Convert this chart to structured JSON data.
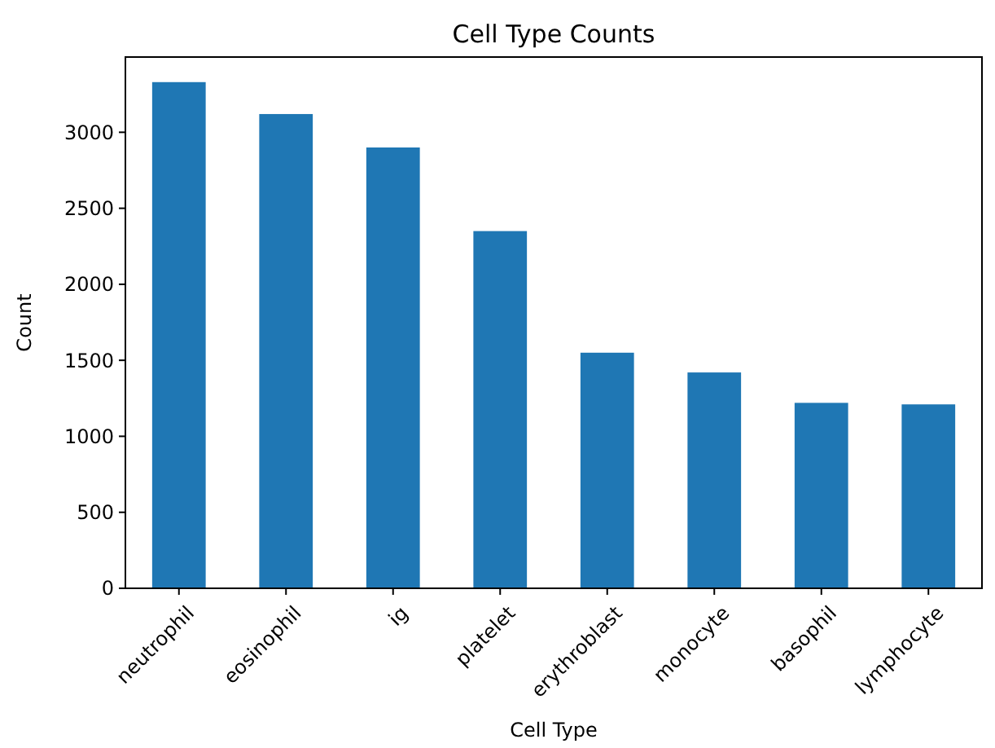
{
  "chart_data": {
    "type": "bar",
    "title": "Cell Type Counts",
    "xlabel": "Cell Type",
    "ylabel": "Count",
    "categories": [
      "neutrophil",
      "eosinophil",
      "ig",
      "platelet",
      "erythroblast",
      "monocyte",
      "basophil",
      "lymphocyte"
    ],
    "values": [
      3330,
      3120,
      2900,
      2350,
      1550,
      1420,
      1220,
      1210
    ],
    "color": "#1f77b4",
    "ylim": [
      0,
      3495
    ],
    "yticks": [
      0,
      500,
      1000,
      1500,
      2000,
      2500,
      3000
    ],
    "grid": false
  }
}
